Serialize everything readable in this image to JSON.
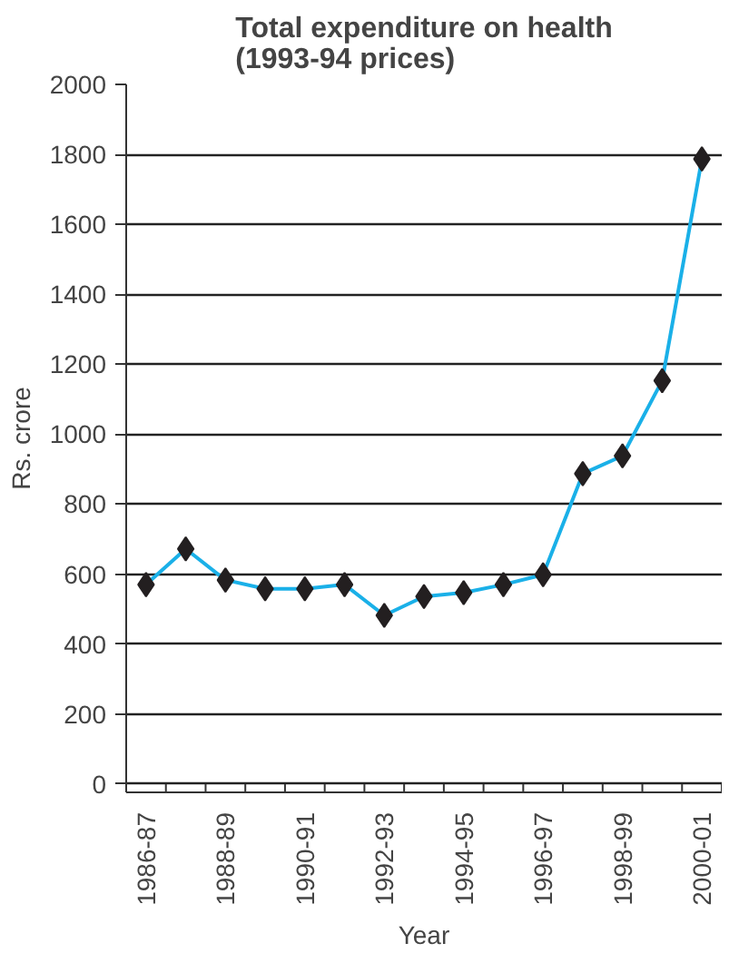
{
  "chart_data": {
    "type": "line",
    "title": "Total expenditure on health\n(1993-94 prices)",
    "xlabel": "Year",
    "ylabel": "Rs. crore",
    "categories": [
      "1986-87",
      null,
      "1988-89",
      null,
      "1990-91",
      null,
      "1992-93",
      null,
      "1994-95",
      null,
      "1996-97",
      null,
      "1998-99",
      null,
      "2000-01"
    ],
    "series": [
      {
        "color": "#1ab0e8",
        "values": [
          570,
          672,
          583,
          558,
          558,
          570,
          482,
          536,
          547,
          570,
          598,
          887,
          938,
          1153,
          1787
        ]
      }
    ],
    "ylim": [
      0,
      2000
    ],
    "yticks": [
      0,
      200,
      400,
      600,
      800,
      1000,
      1200,
      1400,
      1600,
      1800,
      2000
    ],
    "grid": "y",
    "marker": "diamond",
    "line_style": "solid"
  }
}
